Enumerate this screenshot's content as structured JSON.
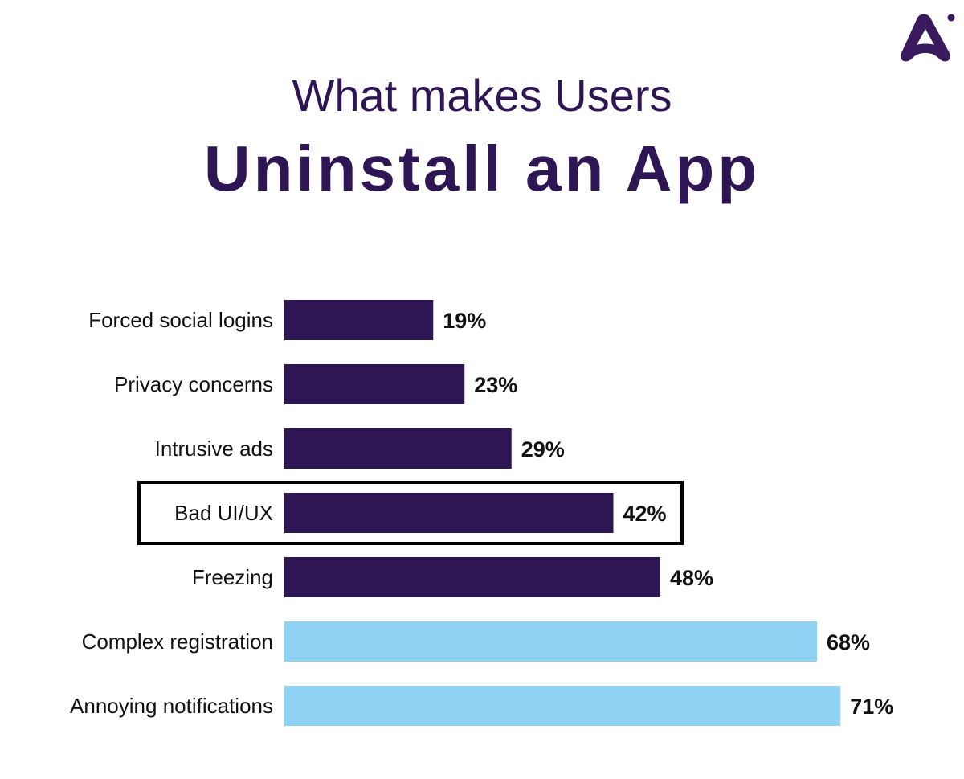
{
  "title": {
    "line1": "What makes Users",
    "line2": "Uninstall an App"
  },
  "logo": {
    "icon": "brand-logo-icon",
    "color": "#3a1a5e"
  },
  "colors": {
    "dark_bar": "#2e1654",
    "light_bar": "#90d2f3",
    "text": "#111111",
    "highlight_border": "#000000"
  },
  "chart_data": {
    "type": "bar",
    "orientation": "horizontal",
    "title": "What makes Users Uninstall an App",
    "categories": [
      "Forced social logins",
      "Privacy concerns",
      "Intrusive ads",
      "Bad UI/UX",
      "Freezing",
      "Complex registration",
      "Annoying notifications"
    ],
    "values": [
      19,
      23,
      29,
      42,
      48,
      68,
      71
    ],
    "value_labels": [
      "19%",
      "23%",
      "29%",
      "42%",
      "48%",
      "68%",
      "71%"
    ],
    "bar_colors": [
      "dark",
      "dark",
      "dark",
      "dark",
      "dark",
      "light",
      "light"
    ],
    "highlighted_category": "Bad UI/UX",
    "xlabel": "",
    "ylabel": "",
    "xlim": [
      0,
      100
    ],
    "grid": false,
    "legend": "none"
  }
}
